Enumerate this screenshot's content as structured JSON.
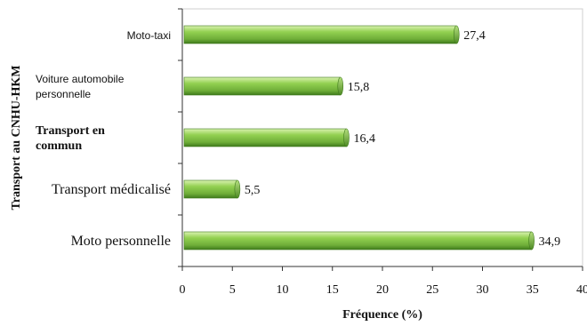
{
  "chart_data": {
    "type": "bar",
    "orientation": "horizontal",
    "categories": [
      "Moto-taxi",
      "Voiture automobile personnelle",
      "Transport en commun",
      "Transport médicalisé",
      "Moto personnelle"
    ],
    "values": [
      27.4,
      15.8,
      16.4,
      5.5,
      34.9
    ],
    "value_labels": [
      "27,4",
      "15,8",
      "16,4",
      "5,5",
      "34,9"
    ],
    "xlabel": "Fréquence (%)",
    "ylabel": "Transport au CNHU-HKM",
    "xlim": [
      0,
      40
    ],
    "xticks": [
      "0",
      "5",
      "10",
      "15",
      "20",
      "25",
      "30",
      "35",
      "40"
    ],
    "grid": false,
    "bar_color": "#7fc24a",
    "bar_dark": "#3f7a1c"
  }
}
